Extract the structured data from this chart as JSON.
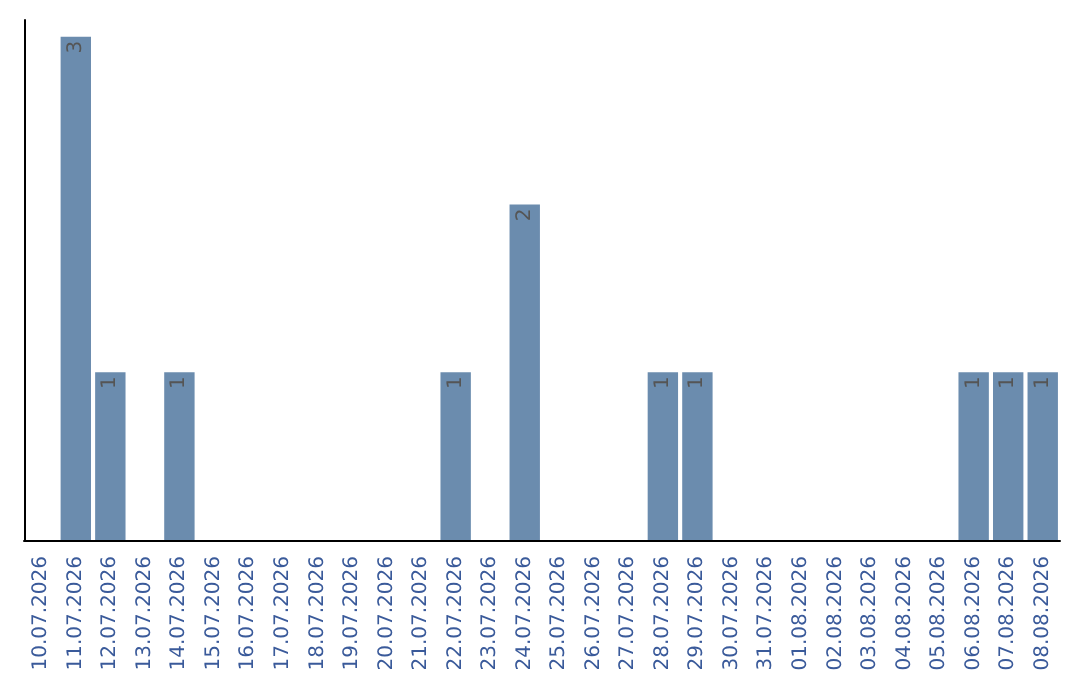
{
  "chart_data": {
    "type": "bar",
    "categories": [
      "10.07.2026",
      "11.07.2026",
      "12.07.2026",
      "13.07.2026",
      "14.07.2026",
      "15.07.2026",
      "16.07.2026",
      "17.07.2026",
      "18.07.2026",
      "19.07.2026",
      "20.07.2026",
      "21.07.2026",
      "22.07.2026",
      "23.07.2026",
      "24.07.2026",
      "25.07.2026",
      "26.07.2026",
      "27.07.2026",
      "28.07.2026",
      "29.07.2026",
      "30.07.2026",
      "31.07.2026",
      "01.08.2026",
      "02.08.2026",
      "03.08.2026",
      "04.08.2026",
      "05.08.2026",
      "06.08.2026",
      "07.08.2026",
      "08.08.2026"
    ],
    "values": [
      0,
      3,
      1,
      0,
      1,
      0,
      0,
      0,
      0,
      0,
      0,
      0,
      1,
      0,
      2,
      0,
      0,
      0,
      1,
      1,
      0,
      0,
      0,
      0,
      0,
      0,
      0,
      1,
      1,
      1
    ],
    "value_labels": [
      null,
      "3",
      "1",
      null,
      "1",
      null,
      null,
      null,
      null,
      null,
      null,
      null,
      "1",
      null,
      "2",
      null,
      null,
      null,
      "1",
      "1",
      null,
      null,
      null,
      null,
      null,
      null,
      null,
      "1",
      "1",
      "1"
    ],
    "color": "#6b8cae",
    "ylim": [
      0,
      3.1
    ],
    "tick_labels": "x"
  }
}
